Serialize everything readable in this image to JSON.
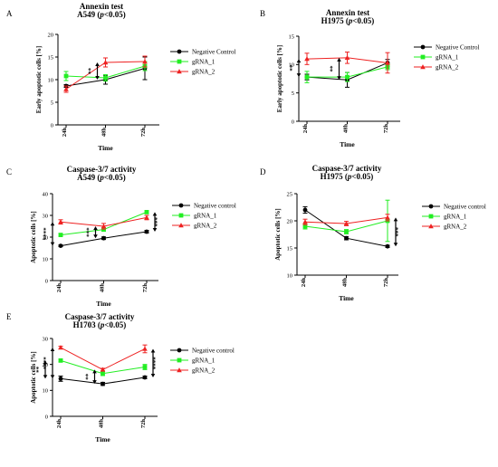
{
  "colors": {
    "negative": "#000000",
    "grna1": "#22ee22",
    "grna2": "#ee2222"
  },
  "chart_data": [
    {
      "letter": "A",
      "type": "line",
      "title": "Annexin test",
      "subtitle_prefix": "A549 (",
      "subtitle_p": "p",
      "subtitle_suffix": "<0.05)",
      "xlabel": "Time",
      "ylabel": "Early apoptotic cells [%]",
      "categories": [
        "24h",
        "48h",
        "72h"
      ],
      "ylim": [
        0,
        20
      ],
      "yticks": [
        0,
        5,
        10,
        15,
        20
      ],
      "legend_position": "right",
      "series": [
        {
          "name": "Negative Control",
          "marker": "circle",
          "color_key": "negative",
          "values": [
            8.6,
            10.0,
            12.5
          ],
          "err": [
            0.3,
            1.0,
            2.5
          ]
        },
        {
          "name": "gRNA_1",
          "marker": "square",
          "color_key": "grna1",
          "values": [
            10.8,
            10.4,
            13.0
          ],
          "err": [
            1.0,
            0.7,
            1.0
          ]
        },
        {
          "name": "gRNA_2",
          "marker": "triangle",
          "color_key": "grna2",
          "values": [
            7.9,
            13.8,
            14.0
          ],
          "err": [
            0.7,
            1.0,
            1.2
          ]
        }
      ],
      "annotations": [
        {
          "text": "**",
          "x": 1,
          "y_from": 10.0,
          "y_to": 13.8
        }
      ]
    },
    {
      "letter": "B",
      "type": "line",
      "title": "Annexin test",
      "subtitle_prefix": "H1975 (",
      "subtitle_p": "p",
      "subtitle_suffix": "<0.05)",
      "xlabel": "Time",
      "ylabel": "Early apoptotic cells [%]",
      "categories": [
        "24h",
        "48h",
        "72h"
      ],
      "ylim": [
        0,
        15
      ],
      "yticks": [
        0,
        5,
        10,
        15
      ],
      "legend_position": "right",
      "series": [
        {
          "name": "Negative Control",
          "marker": "circle",
          "color_key": "negative",
          "values": [
            7.8,
            7.3,
            10.3
          ],
          "err": [
            0.5,
            1.3,
            0.6
          ]
        },
        {
          "name": "gRNA_1",
          "marker": "square",
          "color_key": "grna1",
          "values": [
            7.8,
            7.8,
            9.6
          ],
          "err": [
            1.0,
            0.8,
            0.5
          ]
        },
        {
          "name": "gRNA_2",
          "marker": "triangle",
          "color_key": "grna2",
          "values": [
            11.0,
            11.2,
            10.3
          ],
          "err": [
            1.0,
            1.0,
            1.8
          ]
        }
      ],
      "annotations": [
        {
          "text": "**",
          "x": 0,
          "y_from": 7.8,
          "y_to": 11.0
        },
        {
          "text": "**",
          "x": 1,
          "y_from": 7.3,
          "y_to": 11.2
        }
      ]
    },
    {
      "letter": "C",
      "type": "line",
      "title": "Caspase-3/7 activity",
      "subtitle_prefix": "A549 (",
      "subtitle_p": "p",
      "subtitle_suffix": "<0.05)",
      "xlabel": "Time",
      "ylabel": "Apoptotic cells [%]",
      "categories": [
        "24h",
        "48h",
        "72h"
      ],
      "ylim": [
        0,
        40
      ],
      "yticks": [
        0,
        10,
        20,
        30,
        40
      ],
      "legend_position": "right",
      "series": [
        {
          "name": "Negative control",
          "marker": "circle",
          "color_key": "negative",
          "values": [
            16.0,
            19.5,
            22.5
          ],
          "err": [
            0.4,
            0.6,
            0.6
          ]
        },
        {
          "name": "gRNA_1",
          "marker": "square",
          "color_key": "grna1",
          "values": [
            21.0,
            23.5,
            31.5
          ],
          "err": [
            0.6,
            0.8,
            0.6
          ]
        },
        {
          "name": "gRNA_2",
          "marker": "triangle",
          "color_key": "grna2",
          "values": [
            27.0,
            25.0,
            29.0
          ],
          "err": [
            1.0,
            1.3,
            1.0
          ]
        }
      ],
      "annotations": [
        {
          "text": "****",
          "x": 0,
          "y_from": 16.0,
          "y_to": 27.0
        },
        {
          "text": "***",
          "x": 1,
          "y_from": 19.5,
          "y_to": 25.0
        },
        {
          "text": "***",
          "x": 2,
          "y_from": 22.5,
          "y_to": 31.5
        }
      ]
    },
    {
      "letter": "D",
      "type": "line",
      "title": "Caspase-3/7 activity",
      "subtitle_prefix": "H1975 (",
      "subtitle_p": "p",
      "subtitle_suffix": "<0.05)",
      "xlabel": "Time",
      "ylabel": "Apoptotic cells [%]",
      "categories": [
        "24h",
        "48h",
        "72h"
      ],
      "ylim": [
        10,
        25
      ],
      "yticks": [
        10,
        15,
        20,
        25
      ],
      "legend_position": "right",
      "series": [
        {
          "name": "Negative control",
          "marker": "circle",
          "color_key": "negative",
          "values": [
            22.0,
            16.8,
            15.3
          ],
          "err": [
            0.6,
            0.3,
            0.2
          ]
        },
        {
          "name": "gRNA_1",
          "marker": "square",
          "color_key": "grna1",
          "values": [
            19.0,
            18.0,
            20.0
          ],
          "err": [
            0.5,
            0.4,
            3.8
          ]
        },
        {
          "name": "gRNA_2",
          "marker": "triangle",
          "color_key": "grna2",
          "values": [
            19.8,
            19.5,
            20.6
          ],
          "err": [
            0.5,
            0.4,
            0.6
          ]
        }
      ],
      "annotations": [
        {
          "text": "***",
          "x": 2,
          "y_from": 15.3,
          "y_to": 20.6
        }
      ]
    },
    {
      "letter": "E",
      "type": "line",
      "title": "Caspase-3/7 activity",
      "subtitle_prefix": "H1703 (",
      "subtitle_p": "p",
      "subtitle_suffix": "<0.05)",
      "xlabel": "Time",
      "ylabel": "Apoptotic cells [%]",
      "categories": [
        "24h",
        "48h",
        "72h"
      ],
      "ylim": [
        0,
        30
      ],
      "yticks": [
        0,
        10,
        20,
        30
      ],
      "legend_position": "right",
      "series": [
        {
          "name": "Negative control",
          "marker": "circle",
          "color_key": "negative",
          "values": [
            14.5,
            12.5,
            15.0
          ],
          "err": [
            1.0,
            0.6,
            0.5
          ]
        },
        {
          "name": "gRNA_1",
          "marker": "square",
          "color_key": "grna1",
          "values": [
            21.5,
            16.5,
            19.0
          ],
          "err": [
            0.5,
            0.8,
            1.0
          ]
        },
        {
          "name": "gRNA_2",
          "marker": "triangle",
          "color_key": "grna2",
          "values": [
            26.5,
            18.0,
            26.0
          ],
          "err": [
            0.5,
            0.5,
            1.5
          ]
        }
      ],
      "annotations": [
        {
          "text": "****",
          "x": 0,
          "y_from": 14.5,
          "y_to": 26.5
        },
        {
          "text": "**",
          "x": 0,
          "y_from": 14.5,
          "y_to": 21.5
        },
        {
          "text": "**",
          "x": 1,
          "y_from": 12.5,
          "y_to": 18.0
        },
        {
          "text": "****",
          "x": 2,
          "y_from": 15.0,
          "y_to": 26.0
        }
      ]
    }
  ]
}
